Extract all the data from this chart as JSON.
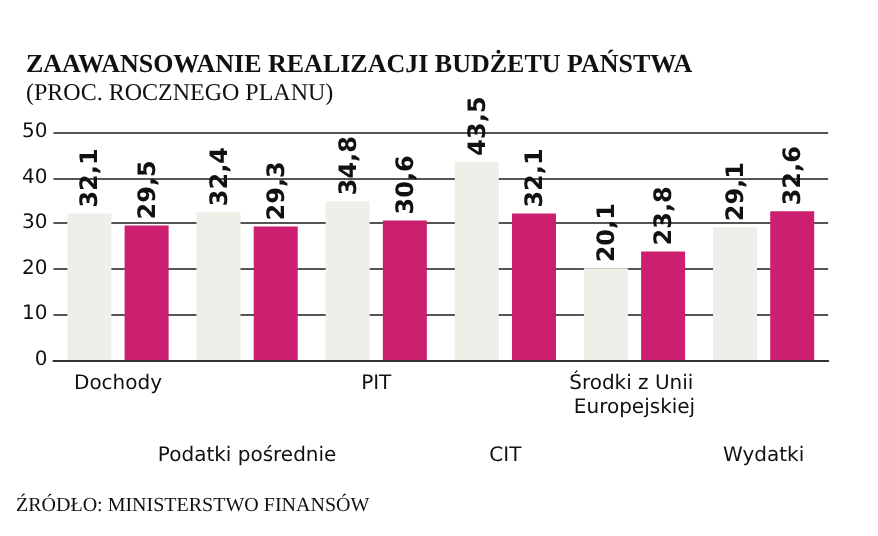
{
  "chart_data": {
    "type": "bar",
    "title": "ZAAWANSOWANIE REALIZACJI BUDŻETU PAŃSTWA",
    "subtitle": "(PROC. ROCZNEGO PLANU)",
    "categories": [
      "Dochody",
      "Podatki pośrednie",
      "PIT",
      "CIT",
      "Środki z Unii Europejskiej",
      "Wydatki"
    ],
    "series": [
      {
        "color": "#eeefe8",
        "values": [
          32.1,
          32.4,
          34.8,
          43.5,
          20.1,
          29.1
        ],
        "value_labels": [
          "32,1",
          "32,4",
          "34,8",
          "43,5",
          "20,1",
          "29,1"
        ]
      },
      {
        "color": "#cc1f6f",
        "values": [
          29.5,
          29.3,
          30.6,
          32.1,
          23.8,
          32.6
        ],
        "value_labels": [
          "29,5",
          "29,3",
          "30,6",
          "32,1",
          "23,8",
          "32,6"
        ]
      }
    ],
    "ylim": [
      0,
      50
    ],
    "yticks": [
      0,
      10,
      20,
      30,
      40,
      50
    ],
    "grid": "y",
    "annotations": [
      "ŹRÓDŁO: MINISTERSTWO FINANSÓW"
    ]
  }
}
